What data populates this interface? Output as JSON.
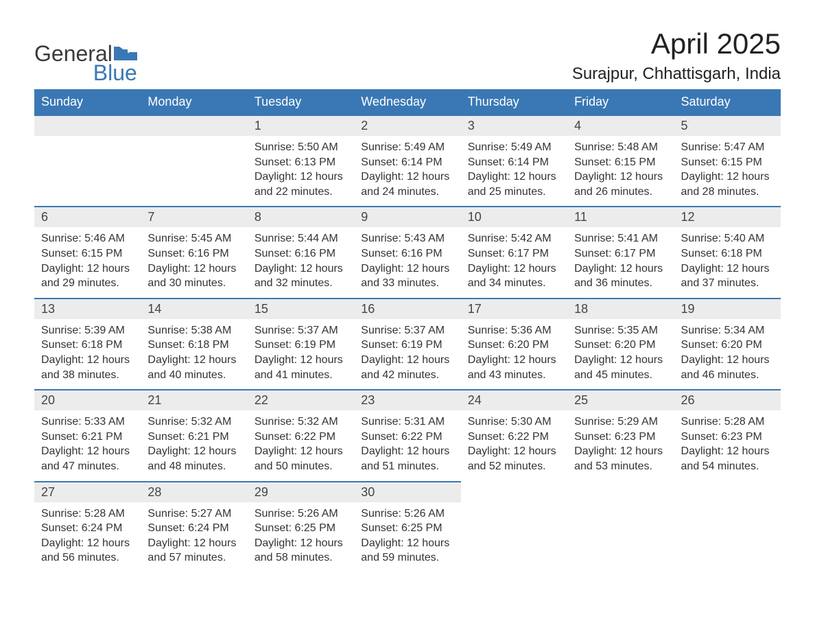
{
  "logo": {
    "text1": "General",
    "text2": "Blue"
  },
  "title": "April 2025",
  "location": "Surajpur, Chhattisgarh, India",
  "colors": {
    "header_bg": "#3a78b5",
    "header_text": "#ffffff",
    "daynum_bg": "#ececec",
    "daynum_border": "#3a78b5",
    "body_text": "#333333",
    "page_bg": "#ffffff"
  },
  "weekdays": [
    "Sunday",
    "Monday",
    "Tuesday",
    "Wednesday",
    "Thursday",
    "Friday",
    "Saturday"
  ],
  "weeks": [
    [
      null,
      null,
      {
        "n": "1",
        "sunrise": "5:50 AM",
        "sunset": "6:13 PM",
        "dlh": "12",
        "dlm": "22"
      },
      {
        "n": "2",
        "sunrise": "5:49 AM",
        "sunset": "6:14 PM",
        "dlh": "12",
        "dlm": "24"
      },
      {
        "n": "3",
        "sunrise": "5:49 AM",
        "sunset": "6:14 PM",
        "dlh": "12",
        "dlm": "25"
      },
      {
        "n": "4",
        "sunrise": "5:48 AM",
        "sunset": "6:15 PM",
        "dlh": "12",
        "dlm": "26"
      },
      {
        "n": "5",
        "sunrise": "5:47 AM",
        "sunset": "6:15 PM",
        "dlh": "12",
        "dlm": "28"
      }
    ],
    [
      {
        "n": "6",
        "sunrise": "5:46 AM",
        "sunset": "6:15 PM",
        "dlh": "12",
        "dlm": "29"
      },
      {
        "n": "7",
        "sunrise": "5:45 AM",
        "sunset": "6:16 PM",
        "dlh": "12",
        "dlm": "30"
      },
      {
        "n": "8",
        "sunrise": "5:44 AM",
        "sunset": "6:16 PM",
        "dlh": "12",
        "dlm": "32"
      },
      {
        "n": "9",
        "sunrise": "5:43 AM",
        "sunset": "6:16 PM",
        "dlh": "12",
        "dlm": "33"
      },
      {
        "n": "10",
        "sunrise": "5:42 AM",
        "sunset": "6:17 PM",
        "dlh": "12",
        "dlm": "34"
      },
      {
        "n": "11",
        "sunrise": "5:41 AM",
        "sunset": "6:17 PM",
        "dlh": "12",
        "dlm": "36"
      },
      {
        "n": "12",
        "sunrise": "5:40 AM",
        "sunset": "6:18 PM",
        "dlh": "12",
        "dlm": "37"
      }
    ],
    [
      {
        "n": "13",
        "sunrise": "5:39 AM",
        "sunset": "6:18 PM",
        "dlh": "12",
        "dlm": "38"
      },
      {
        "n": "14",
        "sunrise": "5:38 AM",
        "sunset": "6:18 PM",
        "dlh": "12",
        "dlm": "40"
      },
      {
        "n": "15",
        "sunrise": "5:37 AM",
        "sunset": "6:19 PM",
        "dlh": "12",
        "dlm": "41"
      },
      {
        "n": "16",
        "sunrise": "5:37 AM",
        "sunset": "6:19 PM",
        "dlh": "12",
        "dlm": "42"
      },
      {
        "n": "17",
        "sunrise": "5:36 AM",
        "sunset": "6:20 PM",
        "dlh": "12",
        "dlm": "43"
      },
      {
        "n": "18",
        "sunrise": "5:35 AM",
        "sunset": "6:20 PM",
        "dlh": "12",
        "dlm": "45"
      },
      {
        "n": "19",
        "sunrise": "5:34 AM",
        "sunset": "6:20 PM",
        "dlh": "12",
        "dlm": "46"
      }
    ],
    [
      {
        "n": "20",
        "sunrise": "5:33 AM",
        "sunset": "6:21 PM",
        "dlh": "12",
        "dlm": "47"
      },
      {
        "n": "21",
        "sunrise": "5:32 AM",
        "sunset": "6:21 PM",
        "dlh": "12",
        "dlm": "48"
      },
      {
        "n": "22",
        "sunrise": "5:32 AM",
        "sunset": "6:22 PM",
        "dlh": "12",
        "dlm": "50"
      },
      {
        "n": "23",
        "sunrise": "5:31 AM",
        "sunset": "6:22 PM",
        "dlh": "12",
        "dlm": "51"
      },
      {
        "n": "24",
        "sunrise": "5:30 AM",
        "sunset": "6:22 PM",
        "dlh": "12",
        "dlm": "52"
      },
      {
        "n": "25",
        "sunrise": "5:29 AM",
        "sunset": "6:23 PM",
        "dlh": "12",
        "dlm": "53"
      },
      {
        "n": "26",
        "sunrise": "5:28 AM",
        "sunset": "6:23 PM",
        "dlh": "12",
        "dlm": "54"
      }
    ],
    [
      {
        "n": "27",
        "sunrise": "5:28 AM",
        "sunset": "6:24 PM",
        "dlh": "12",
        "dlm": "56"
      },
      {
        "n": "28",
        "sunrise": "5:27 AM",
        "sunset": "6:24 PM",
        "dlh": "12",
        "dlm": "57"
      },
      {
        "n": "29",
        "sunrise": "5:26 AM",
        "sunset": "6:25 PM",
        "dlh": "12",
        "dlm": "58"
      },
      {
        "n": "30",
        "sunrise": "5:26 AM",
        "sunset": "6:25 PM",
        "dlh": "12",
        "dlm": "59"
      },
      null,
      null,
      null
    ]
  ],
  "labels": {
    "sunrise": "Sunrise:",
    "sunset": "Sunset:",
    "daylight": "Daylight:",
    "hours": "hours",
    "and": "and",
    "minutes": "minutes."
  }
}
